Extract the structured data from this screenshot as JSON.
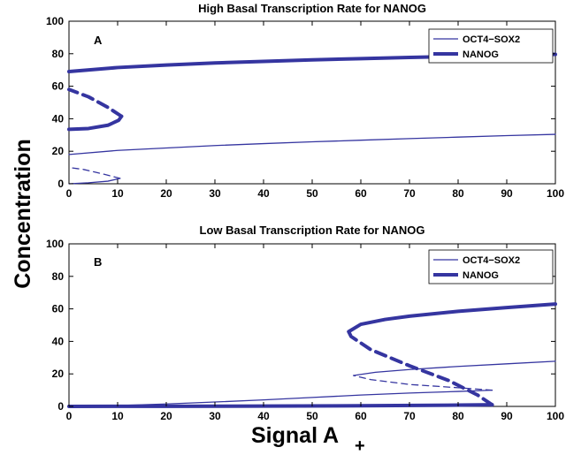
{
  "chart_data": [
    {
      "type": "line",
      "title": "High Basal Transcription Rate for NANOG",
      "panel_label": "A",
      "xlim": [
        0,
        100
      ],
      "ylim": [
        0,
        100
      ],
      "x_ticks": [
        0,
        10,
        20,
        30,
        40,
        50,
        60,
        70,
        80,
        90,
        100
      ],
      "y_ticks": [
        0,
        20,
        40,
        60,
        80,
        100
      ],
      "legend": {
        "placement": "top-right",
        "entries": [
          "OCT4−SOX2",
          "NANOG"
        ]
      },
      "series": [
        {
          "name": "OCT4−SOX2",
          "style": "solid",
          "weight": "thin",
          "points": [
            [
              0,
              18
            ],
            [
              10,
              20.5
            ],
            [
              20,
              22
            ],
            [
              30,
              23.5
            ],
            [
              40,
              24.7
            ],
            [
              50,
              25.8
            ],
            [
              60,
              26.8
            ],
            [
              70,
              27.8
            ],
            [
              80,
              28.7
            ],
            [
              90,
              29.6
            ],
            [
              100,
              30.4
            ]
          ]
        },
        {
          "name": "OCT4−SOX2",
          "style": "solid",
          "weight": "thin",
          "points": [
            [
              0,
              0
            ],
            [
              4,
              0.6
            ],
            [
              8,
              1.6
            ],
            [
              10.5,
              3.3
            ]
          ]
        },
        {
          "name": "OCT4−SOX2",
          "style": "dashed",
          "weight": "thin",
          "points": [
            [
              10.5,
              3.3
            ],
            [
              7,
              6
            ],
            [
              3,
              8.8
            ],
            [
              0,
              10
            ]
          ]
        },
        {
          "name": "NANOG",
          "style": "solid",
          "weight": "thick",
          "points": [
            [
              0,
              69
            ],
            [
              10,
              71.5
            ],
            [
              20,
              73
            ],
            [
              30,
              74.3
            ],
            [
              40,
              75.3
            ],
            [
              50,
              76.2
            ],
            [
              60,
              77
            ],
            [
              70,
              77.7
            ],
            [
              80,
              78.4
            ],
            [
              90,
              79
            ],
            [
              100,
              79.6
            ]
          ]
        },
        {
          "name": "NANOG",
          "style": "solid",
          "weight": "thick",
          "points": [
            [
              0,
              33.5
            ],
            [
              4,
              34
            ],
            [
              8,
              36
            ],
            [
              10.2,
              39
            ],
            [
              10.8,
              41.5
            ]
          ]
        },
        {
          "name": "NANOG",
          "style": "dashed",
          "weight": "thick",
          "points": [
            [
              10.8,
              41.5
            ],
            [
              8,
              47
            ],
            [
              4,
              53.5
            ],
            [
              0,
              58
            ]
          ]
        }
      ]
    },
    {
      "type": "line",
      "title": "Low Basal Transcription Rate for NANOG",
      "panel_label": "B",
      "xlim": [
        0,
        100
      ],
      "ylim": [
        0,
        100
      ],
      "x_ticks": [
        0,
        10,
        20,
        30,
        40,
        50,
        60,
        70,
        80,
        90,
        100
      ],
      "y_ticks": [
        0,
        20,
        40,
        60,
        80,
        100
      ],
      "legend": {
        "placement": "top-right",
        "entries": [
          "OCT4−SOX2",
          "NANOG"
        ]
      },
      "series": [
        {
          "name": "OCT4−SOX2",
          "style": "solid",
          "weight": "thin",
          "points": [
            [
              0,
              0
            ],
            [
              10,
              0.5
            ],
            [
              20,
              1.5
            ],
            [
              30,
              2.7
            ],
            [
              40,
              4
            ],
            [
              50,
              5.5
            ],
            [
              60,
              7
            ],
            [
              70,
              8.2
            ],
            [
              80,
              9.2
            ],
            [
              87,
              10
            ]
          ]
        },
        {
          "name": "OCT4−SOX2",
          "style": "dashed",
          "weight": "thin",
          "points": [
            [
              87,
              10
            ],
            [
              80,
              11.5
            ],
            [
              70,
              13.5
            ],
            [
              62,
              16.5
            ],
            [
              58.5,
              19
            ]
          ]
        },
        {
          "name": "OCT4−SOX2",
          "style": "solid",
          "weight": "thin",
          "points": [
            [
              58.5,
              19
            ],
            [
              63,
              21
            ],
            [
              70,
              22.7
            ],
            [
              80,
              24.6
            ],
            [
              90,
              26.2
            ],
            [
              100,
              27.8
            ]
          ]
        },
        {
          "name": "NANOG",
          "style": "solid",
          "weight": "thick",
          "points": [
            [
              0,
              0
            ],
            [
              20,
              0.1
            ],
            [
              40,
              0.2
            ],
            [
              60,
              0.4
            ],
            [
              80,
              0.8
            ],
            [
              87,
              1
            ]
          ]
        },
        {
          "name": "NANOG",
          "style": "dashed",
          "weight": "thick",
          "points": [
            [
              87,
              1
            ],
            [
              84,
              7
            ],
            [
              78,
              16
            ],
            [
              70,
              25
            ],
            [
              62,
              35
            ],
            [
              58,
              43
            ],
            [
              57.5,
              46
            ]
          ]
        },
        {
          "name": "NANOG",
          "style": "solid",
          "weight": "thick",
          "points": [
            [
              57.5,
              46
            ],
            [
              60,
              50.5
            ],
            [
              65,
              53.5
            ],
            [
              70,
              55.5
            ],
            [
              80,
              58.5
            ],
            [
              90,
              60.8
            ],
            [
              100,
              63
            ]
          ]
        }
      ]
    }
  ],
  "ylabel": "Concentration",
  "xlabel_main": "Signal A",
  "xlabel_sub": "+",
  "colors": {
    "series": "#3535a0",
    "axis": "#000000",
    "background": "#ffffff"
  }
}
